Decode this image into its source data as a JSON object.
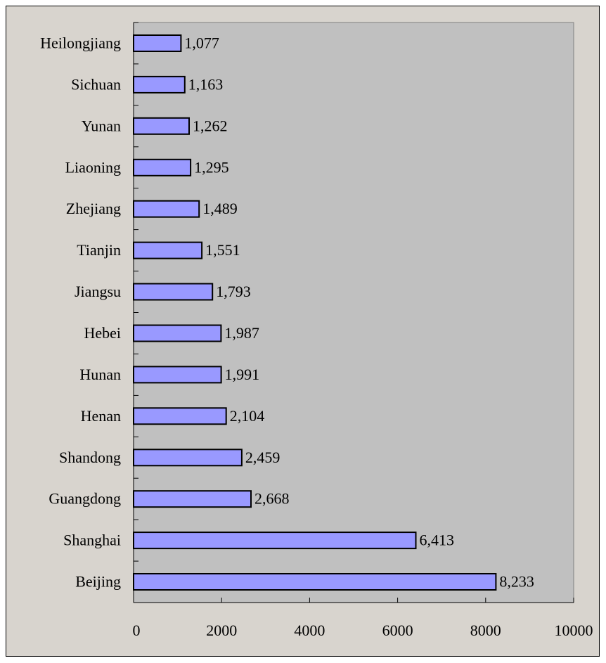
{
  "colors": {
    "page_background": "#d8d4ce",
    "plot_background": "#c0c0c0",
    "bar_fill": "#9999ff",
    "bar_stroke": "#000000",
    "text": "#000000"
  },
  "chart_data": {
    "type": "bar",
    "orientation": "horizontal",
    "title": "",
    "xlabel": "",
    "ylabel": "",
    "categories": [
      "Heilongjiang",
      "Sichuan",
      "Yunan",
      "Liaoning",
      "Zhejiang",
      "Tianjin",
      "Jiangsu",
      "Hebei",
      "Hunan",
      "Henan",
      "Shandong",
      "Guangdong",
      "Shanghai",
      "Beijing"
    ],
    "values": [
      1077,
      1163,
      1262,
      1295,
      1489,
      1551,
      1793,
      1987,
      1991,
      2104,
      2459,
      2668,
      6413,
      8233
    ],
    "value_labels": [
      "1,077",
      "1,163",
      "1,262",
      "1,295",
      "1,489",
      "1,551",
      "1,793",
      "1,987",
      "1,991",
      "2,104",
      "2,459",
      "2,668",
      "6,413",
      "8,233"
    ],
    "xlim": [
      0,
      10000
    ],
    "x_ticks": [
      0,
      2000,
      4000,
      6000,
      8000,
      10000
    ],
    "x_tick_labels": [
      "0",
      "2000",
      "4000",
      "6000",
      "8000",
      "10000"
    ],
    "grid": false,
    "legend": "none"
  }
}
